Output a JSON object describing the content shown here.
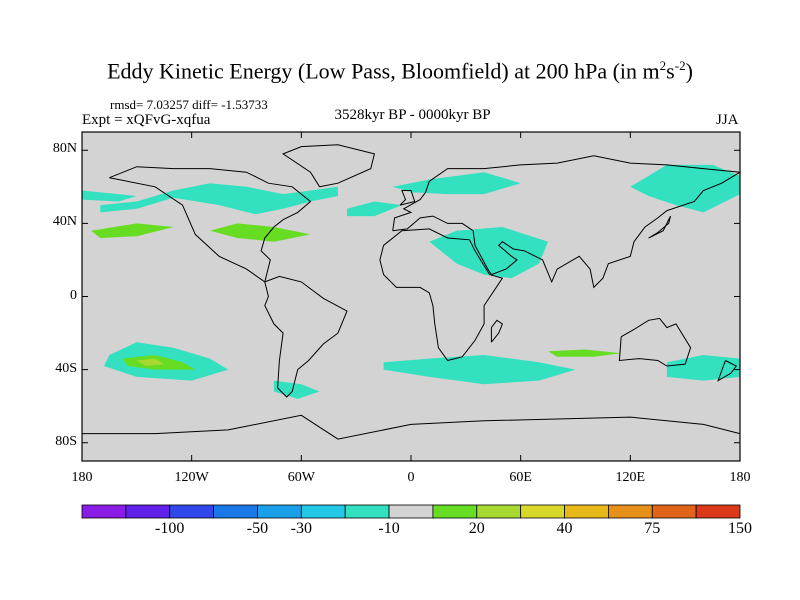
{
  "title": {
    "text": "Eddy Kinetic Energy (Low Pass, Bloomfield) at 200 hPa (in m",
    "sup1": "2",
    "mid": "s",
    "sup2": "-2",
    "end": ")"
  },
  "stats": "rmsd= 7.03257  diff= -1.53733",
  "expt": "Expt = xQFvG-xqfua",
  "period": "3528kyr BP - 0000kyr BP",
  "season": "JJA",
  "map": {
    "lat_labels": [
      "80N",
      "40N",
      "0",
      "40S",
      "80S"
    ],
    "lat_values": [
      80,
      40,
      0,
      -40,
      -80
    ],
    "lon_labels": [
      "180",
      "120W",
      "60W",
      "0",
      "60E",
      "120E",
      "180"
    ],
    "lon_values": [
      -180,
      -120,
      -60,
      0,
      60,
      120,
      180
    ],
    "lat_range": [
      -90,
      90
    ],
    "lon_range": [
      -180,
      180
    ],
    "background_color": "#d3d3d3",
    "regions": [
      {
        "name": "n-atlantic-neg",
        "color": "#33e0c0",
        "points": [
          [
            -170,
            50
          ],
          [
            -150,
            52
          ],
          [
            -130,
            58
          ],
          [
            -110,
            62
          ],
          [
            -90,
            60
          ],
          [
            -70,
            56
          ],
          [
            -55,
            58
          ],
          [
            -40,
            60
          ],
          [
            -40,
            55
          ],
          [
            -55,
            52
          ],
          [
            -70,
            48
          ],
          [
            -85,
            45
          ],
          [
            -105,
            50
          ],
          [
            -130,
            54
          ],
          [
            -150,
            48
          ],
          [
            -170,
            46
          ]
        ]
      },
      {
        "name": "n-pacific-neg",
        "color": "#33e0c0",
        "points": [
          [
            -180,
            58
          ],
          [
            -160,
            56
          ],
          [
            -150,
            55
          ],
          [
            -160,
            52
          ],
          [
            -180,
            53
          ]
        ]
      },
      {
        "name": "n-europe-neg",
        "color": "#33e0c0",
        "points": [
          [
            -10,
            60
          ],
          [
            10,
            64
          ],
          [
            40,
            68
          ],
          [
            60,
            62
          ],
          [
            40,
            56
          ],
          [
            20,
            56
          ],
          [
            0,
            57
          ]
        ]
      },
      {
        "name": "mediterranean-neg",
        "color": "#33e0c0",
        "points": [
          [
            -35,
            48
          ],
          [
            -20,
            52
          ],
          [
            -5,
            50
          ],
          [
            -20,
            44
          ],
          [
            -35,
            44
          ]
        ]
      },
      {
        "name": "asia-neg",
        "color": "#33e0c0",
        "points": [
          [
            120,
            60
          ],
          [
            140,
            72
          ],
          [
            165,
            72
          ],
          [
            180,
            66
          ],
          [
            180,
            56
          ],
          [
            160,
            46
          ],
          [
            145,
            50
          ],
          [
            130,
            55
          ]
        ]
      },
      {
        "name": "usa-pos",
        "color": "#66dd22",
        "points": [
          [
            -110,
            36
          ],
          [
            -95,
            40
          ],
          [
            -75,
            38
          ],
          [
            -55,
            34
          ],
          [
            -75,
            30
          ],
          [
            -95,
            32
          ]
        ]
      },
      {
        "name": "pacific-pos",
        "color": "#66dd22",
        "points": [
          [
            -175,
            36
          ],
          [
            -150,
            40
          ],
          [
            -130,
            38
          ],
          [
            -150,
            33
          ],
          [
            -170,
            32
          ]
        ]
      },
      {
        "name": "arabia-pos",
        "color": "#66dd22",
        "points": [
          [
            15,
            30
          ],
          [
            30,
            34
          ],
          [
            45,
            36
          ],
          [
            65,
            32
          ],
          [
            70,
            24
          ],
          [
            55,
            16
          ],
          [
            40,
            16
          ],
          [
            25,
            22
          ]
        ]
      },
      {
        "name": "arabia-neg",
        "color": "#33e0c0",
        "points": [
          [
            10,
            30
          ],
          [
            25,
            36
          ],
          [
            50,
            38
          ],
          [
            75,
            30
          ],
          [
            70,
            18
          ],
          [
            55,
            10
          ],
          [
            40,
            12
          ],
          [
            25,
            18
          ]
        ]
      },
      {
        "name": "s-pacific-neg",
        "color": "#33e0c0",
        "points": [
          [
            -165,
            -32
          ],
          [
            -150,
            -25
          ],
          [
            -130,
            -28
          ],
          [
            -110,
            -34
          ],
          [
            -100,
            -40
          ],
          [
            -120,
            -46
          ],
          [
            -150,
            -44
          ],
          [
            -168,
            -38
          ]
        ]
      },
      {
        "name": "s-pacific-pos",
        "color": "#66dd22",
        "points": [
          [
            -158,
            -34
          ],
          [
            -140,
            -32
          ],
          [
            -125,
            -36
          ],
          [
            -118,
            -40
          ],
          [
            -140,
            -40
          ],
          [
            -155,
            -38
          ]
        ]
      },
      {
        "name": "s-pacific-core",
        "color": "#a8d832",
        "points": [
          [
            -150,
            -35
          ],
          [
            -140,
            -34
          ],
          [
            -135,
            -37
          ],
          [
            -145,
            -38
          ]
        ]
      },
      {
        "name": "s-atlantic-neg",
        "color": "#33e0c0",
        "points": [
          [
            -15,
            -36
          ],
          [
            10,
            -34
          ],
          [
            40,
            -32
          ],
          [
            70,
            -36
          ],
          [
            90,
            -40
          ],
          [
            70,
            -46
          ],
          [
            40,
            -48
          ],
          [
            10,
            -44
          ],
          [
            -15,
            -40
          ]
        ]
      },
      {
        "name": "s-indian-pos",
        "color": "#66dd22",
        "points": [
          [
            75,
            -30
          ],
          [
            95,
            -29
          ],
          [
            115,
            -31
          ],
          [
            100,
            -33
          ],
          [
            80,
            -33
          ]
        ]
      },
      {
        "name": "australia-neg",
        "color": "#33e0c0",
        "points": [
          [
            140,
            -36
          ],
          [
            160,
            -32
          ],
          [
            180,
            -34
          ],
          [
            180,
            -44
          ],
          [
            160,
            -46
          ],
          [
            140,
            -44
          ]
        ]
      },
      {
        "name": "s-america-neg",
        "color": "#33e0c0",
        "points": [
          [
            -75,
            -46
          ],
          [
            -60,
            -48
          ],
          [
            -50,
            -52
          ],
          [
            -62,
            -56
          ],
          [
            -75,
            -52
          ]
        ]
      }
    ]
  },
  "colorbar": {
    "colors": [
      "#8a1ee6",
      "#6020e8",
      "#3048ea",
      "#1a78e8",
      "#1aa0e8",
      "#22c8e6",
      "#33e0c0",
      "#d3d3d3",
      "#66dd22",
      "#a8d832",
      "#d8d82a",
      "#e6b81a",
      "#e6901a",
      "#e2641a",
      "#dc381a"
    ],
    "labels": [
      "-100",
      "-50",
      "-30",
      "-10",
      "20",
      "40",
      "75",
      "150"
    ]
  }
}
